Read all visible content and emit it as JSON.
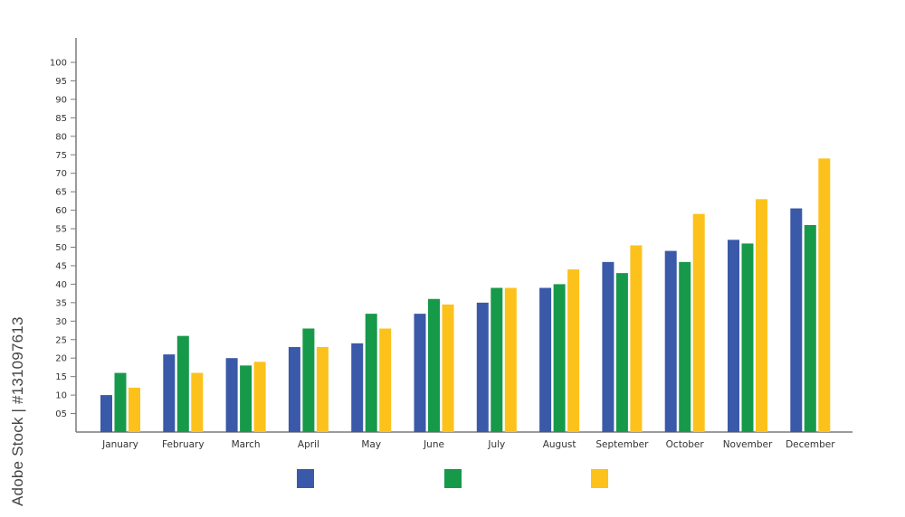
{
  "chart_data": {
    "type": "bar",
    "categories": [
      "January",
      "February",
      "March",
      "April",
      "May",
      "June",
      "July",
      "August",
      "September",
      "October",
      "November",
      "December"
    ],
    "series": [
      {
        "color": "#3a59a8",
        "values": [
          10,
          21,
          20,
          23,
          24,
          32,
          35,
          39,
          46,
          49,
          52,
          60.5
        ]
      },
      {
        "color": "#17994a",
        "values": [
          16,
          26,
          18,
          28,
          32,
          36,
          39,
          40,
          43,
          46,
          51,
          56
        ]
      },
      {
        "color": "#fcc21b",
        "values": [
          12,
          16,
          19,
          23,
          28,
          34.5,
          39,
          44,
          50.5,
          59,
          63,
          74
        ]
      }
    ],
    "yticks": [
      "05",
      "10",
      "15",
      "20",
      "25",
      "30",
      "35",
      "40",
      "45",
      "50",
      "55",
      "60",
      "65",
      "70",
      "75",
      "80",
      "85",
      "90",
      "95",
      "100"
    ],
    "ylim": [
      0,
      100
    ],
    "grid": false,
    "legend": "bottom-center"
  },
  "watermark": "Adobe Stock | #131097613"
}
